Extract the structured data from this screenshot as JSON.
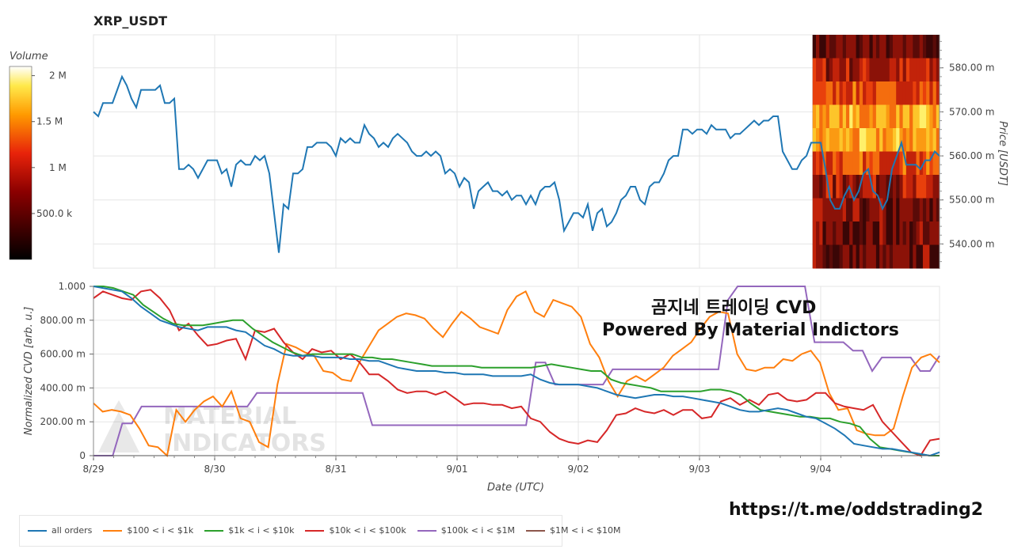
{
  "title": "XRP_USDT",
  "overlay": {
    "line1": "곰지네 트레이딩 CVD",
    "line2": "Powered By Material Indictors"
  },
  "link": "https://t.me/oddstrading2",
  "watermark": [
    "MATERIAL",
    "INDICATORS"
  ],
  "colorbar": {
    "label": "Volume",
    "ticks": [
      "2 M",
      "1.5 M",
      "1 M",
      "500.0 k"
    ],
    "tick_values": [
      2000000,
      1500000,
      1000000,
      500000
    ],
    "range": [
      0,
      2100000
    ]
  },
  "colors": {
    "all": "#1f77b4",
    "s100_1k": "#ff7f0e",
    "s1k_10k": "#2ca02c",
    "s10k_100k": "#d62728",
    "s100k_1m": "#9467bd",
    "s1m_10m": "#8c564b",
    "price": "#1f77b4"
  },
  "chart_data": [
    {
      "type": "line",
      "title": "XRP_USDT",
      "ylabel": "Price [USDT]",
      "yticks": [
        "540.00 m",
        "550.00 m",
        "560.00 m",
        "570.00 m",
        "580.00 m"
      ],
      "ylim": [
        0.5345,
        0.5875
      ],
      "x_ticks": [
        "8/29",
        "8/30",
        "8/31",
        "9/01",
        "9/02",
        "9/03",
        "9/04"
      ],
      "series": [
        {
          "values_mUSDT": [
            570,
            569,
            572,
            572,
            572,
            575,
            578,
            576,
            573,
            571,
            575,
            575,
            575,
            575,
            576,
            572,
            572,
            573,
            557,
            557,
            558,
            557,
            555,
            557,
            559,
            559,
            559,
            556,
            557,
            553,
            558,
            559,
            558,
            558,
            560,
            559,
            560,
            556,
            547,
            538,
            549,
            548,
            556,
            556,
            557,
            562,
            562,
            563,
            563,
            563,
            562,
            560,
            564,
            563,
            564,
            563,
            563,
            567,
            565,
            564,
            562,
            563,
            562,
            564,
            565,
            564,
            563,
            561,
            560,
            560,
            561,
            560,
            561,
            560,
            556,
            557,
            556,
            553,
            555,
            554,
            548,
            552,
            553,
            554,
            552,
            552,
            551,
            552,
            550,
            551,
            551,
            549,
            551,
            549,
            552,
            553,
            553,
            554,
            550,
            543,
            545,
            547,
            547,
            546,
            549,
            543,
            547,
            548,
            544,
            545,
            547,
            550,
            551,
            553,
            553,
            550,
            549,
            553,
            554,
            554,
            556,
            559,
            560,
            560,
            566,
            566,
            565,
            566,
            566,
            565,
            567,
            566,
            566,
            566,
            564,
            565,
            565,
            566,
            567,
            568,
            567,
            568,
            568,
            569,
            569,
            561,
            559,
            557,
            557,
            559,
            560,
            563,
            563,
            563,
            557,
            550,
            548,
            548,
            551,
            553,
            550,
            552,
            556,
            557,
            552,
            551,
            548,
            550,
            557,
            560,
            563,
            558,
            558,
            558,
            557,
            559,
            559,
            561,
            560
          ]
        }
      ],
      "heatmap_region": {
        "x_start_fraction": 0.85,
        "description": "order book volume heatmap"
      }
    },
    {
      "type": "line",
      "ylabel": "Normalized CVD [arb. u.]",
      "xlabel": "Date (UTC)",
      "yticks": [
        "0",
        "200.00 m",
        "400.00 m",
        "600.00 m",
        "800.00 m",
        "1.000"
      ],
      "ylim": [
        0,
        1
      ],
      "x_ticks": [
        "8/29",
        "8/30",
        "8/31",
        "9/01",
        "9/02",
        "9/03",
        "9/04"
      ],
      "series": [
        {
          "name": "all orders",
          "key": "all",
          "values": [
            1.0,
            0.99,
            0.98,
            0.97,
            0.93,
            0.88,
            0.84,
            0.8,
            0.78,
            0.76,
            0.75,
            0.74,
            0.76,
            0.76,
            0.76,
            0.74,
            0.73,
            0.69,
            0.65,
            0.63,
            0.6,
            0.59,
            0.59,
            0.59,
            0.58,
            0.58,
            0.58,
            0.57,
            0.57,
            0.56,
            0.56,
            0.54,
            0.52,
            0.51,
            0.5,
            0.5,
            0.5,
            0.49,
            0.49,
            0.48,
            0.48,
            0.48,
            0.47,
            0.47,
            0.47,
            0.47,
            0.48,
            0.45,
            0.43,
            0.42,
            0.42,
            0.42,
            0.41,
            0.4,
            0.38,
            0.36,
            0.35,
            0.34,
            0.35,
            0.36,
            0.36,
            0.35,
            0.35,
            0.34,
            0.33,
            0.32,
            0.31,
            0.29,
            0.27,
            0.26,
            0.26,
            0.27,
            0.28,
            0.27,
            0.25,
            0.23,
            0.22,
            0.19,
            0.16,
            0.12,
            0.07,
            0.06,
            0.05,
            0.04,
            0.04,
            0.03,
            0.02,
            0.01,
            0.0,
            0.02
          ]
        },
        {
          "name": "$100 < i < $1k",
          "key": "s100_1k",
          "values": [
            0.31,
            0.26,
            0.27,
            0.26,
            0.24,
            0.16,
            0.06,
            0.05,
            0.0,
            0.27,
            0.2,
            0.27,
            0.32,
            0.35,
            0.29,
            0.38,
            0.22,
            0.2,
            0.08,
            0.05,
            0.42,
            0.66,
            0.64,
            0.61,
            0.59,
            0.5,
            0.49,
            0.45,
            0.44,
            0.56,
            0.65,
            0.74,
            0.78,
            0.82,
            0.84,
            0.83,
            0.81,
            0.75,
            0.7,
            0.78,
            0.85,
            0.81,
            0.76,
            0.74,
            0.72,
            0.86,
            0.94,
            0.97,
            0.85,
            0.82,
            0.92,
            0.9,
            0.88,
            0.82,
            0.66,
            0.58,
            0.44,
            0.35,
            0.44,
            0.47,
            0.44,
            0.48,
            0.52,
            0.59,
            0.63,
            0.67,
            0.75,
            0.82,
            0.85,
            0.84,
            0.6,
            0.51,
            0.5,
            0.52,
            0.52,
            0.57,
            0.56,
            0.6,
            0.62,
            0.55,
            0.37,
            0.27,
            0.28,
            0.15,
            0.13,
            0.12,
            0.12,
            0.16,
            0.35,
            0.52,
            0.58,
            0.6,
            0.55
          ]
        },
        {
          "name": "$1k < i < $10k",
          "key": "s1k_10k",
          "values": [
            1.0,
            1.0,
            0.99,
            0.97,
            0.95,
            0.89,
            0.85,
            0.81,
            0.78,
            0.77,
            0.77,
            0.77,
            0.78,
            0.79,
            0.8,
            0.8,
            0.75,
            0.71,
            0.67,
            0.64,
            0.61,
            0.59,
            0.6,
            0.6,
            0.6,
            0.6,
            0.6,
            0.58,
            0.58,
            0.57,
            0.57,
            0.56,
            0.55,
            0.54,
            0.53,
            0.53,
            0.53,
            0.53,
            0.53,
            0.52,
            0.52,
            0.52,
            0.52,
            0.52,
            0.52,
            0.53,
            0.54,
            0.53,
            0.52,
            0.51,
            0.5,
            0.5,
            0.45,
            0.43,
            0.42,
            0.41,
            0.4,
            0.38,
            0.38,
            0.38,
            0.38,
            0.38,
            0.39,
            0.39,
            0.38,
            0.36,
            0.31,
            0.27,
            0.26,
            0.25,
            0.24,
            0.23,
            0.23,
            0.22,
            0.22,
            0.2,
            0.19,
            0.17,
            0.1,
            0.05,
            0.04,
            0.03,
            0.02,
            0.01,
            0.0,
            0.0
          ]
        },
        {
          "name": "$10k < i < $100k",
          "key": "s10k_100k",
          "values": [
            0.93,
            0.97,
            0.95,
            0.93,
            0.92,
            0.97,
            0.98,
            0.93,
            0.86,
            0.74,
            0.78,
            0.71,
            0.65,
            0.66,
            0.68,
            0.69,
            0.57,
            0.74,
            0.73,
            0.75,
            0.67,
            0.61,
            0.57,
            0.63,
            0.61,
            0.62,
            0.57,
            0.6,
            0.55,
            0.48,
            0.48,
            0.44,
            0.39,
            0.37,
            0.38,
            0.38,
            0.36,
            0.38,
            0.34,
            0.3,
            0.31,
            0.31,
            0.3,
            0.3,
            0.28,
            0.29,
            0.22,
            0.2,
            0.14,
            0.1,
            0.08,
            0.07,
            0.09,
            0.08,
            0.15,
            0.24,
            0.25,
            0.28,
            0.26,
            0.25,
            0.27,
            0.24,
            0.27,
            0.27,
            0.22,
            0.23,
            0.32,
            0.34,
            0.3,
            0.33,
            0.3,
            0.36,
            0.37,
            0.33,
            0.32,
            0.33,
            0.37,
            0.37,
            0.31,
            0.29,
            0.28,
            0.27,
            0.3,
            0.2,
            0.14,
            0.08,
            0.02,
            0.0,
            0.09,
            0.1
          ]
        },
        {
          "name": "$100k < i < $1M",
          "key": "s100k_1m",
          "values": [
            0.0,
            0.0,
            0.0,
            0.19,
            0.19,
            0.29,
            0.29,
            0.29,
            0.29,
            0.29,
            0.29,
            0.29,
            0.29,
            0.29,
            0.29,
            0.29,
            0.29,
            0.37,
            0.37,
            0.37,
            0.37,
            0.37,
            0.37,
            0.37,
            0.37,
            0.37,
            0.37,
            0.37,
            0.37,
            0.18,
            0.18,
            0.18,
            0.18,
            0.18,
            0.18,
            0.18,
            0.18,
            0.18,
            0.18,
            0.18,
            0.18,
            0.18,
            0.18,
            0.18,
            0.18,
            0.18,
            0.55,
            0.55,
            0.42,
            0.42,
            0.42,
            0.42,
            0.42,
            0.42,
            0.51,
            0.51,
            0.51,
            0.51,
            0.51,
            0.51,
            0.51,
            0.51,
            0.51,
            0.51,
            0.51,
            0.51,
            0.92,
            1.0,
            1.0,
            1.0,
            1.0,
            1.0,
            1.0,
            1.0,
            1.0,
            0.67,
            0.67,
            0.67,
            0.67,
            0.62,
            0.62,
            0.5,
            0.58,
            0.58,
            0.58,
            0.58,
            0.5,
            0.5,
            0.59
          ]
        },
        {
          "name": "$1M < i < $10M",
          "key": "s1m_10m",
          "values": []
        }
      ]
    }
  ]
}
